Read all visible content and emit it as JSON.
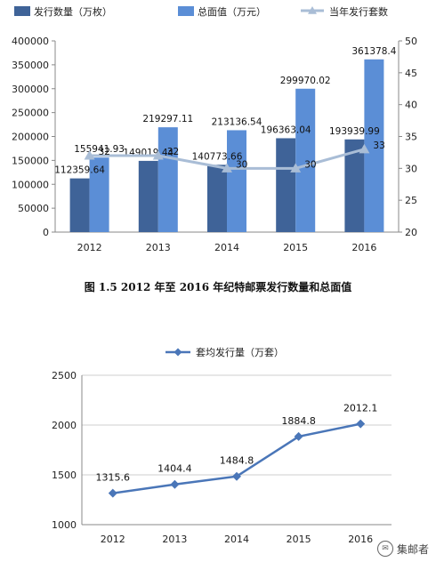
{
  "chart_data": [
    {
      "type": "bar",
      "categories": [
        "2012",
        "2013",
        "2014",
        "2015",
        "2016"
      ],
      "series": [
        {
          "name": "发行数量（万枚）",
          "kind": "bar",
          "axis": "left",
          "color": "#3f6398",
          "values": [
            112359.64,
            149019.44,
            140773.66,
            196363.04,
            193939.99
          ],
          "labels": [
            "112359.64",
            "149019.44",
            "140773.66",
            "196363.04",
            "193939.99"
          ]
        },
        {
          "name": "总面值（万元）",
          "kind": "bar",
          "axis": "left",
          "color": "#5b8ed6",
          "values": [
            155941.93,
            219297.11,
            213136.54,
            299970.02,
            361378.4
          ],
          "labels": [
            "155941.93",
            "219297.11",
            "213136.54",
            "299970.02",
            "361378.4"
          ]
        },
        {
          "name": "当年发行套数",
          "kind": "line",
          "axis": "right",
          "color": "#a9bdd6",
          "values": [
            32,
            32,
            30,
            30,
            33
          ],
          "labels": [
            "32",
            "32",
            "30",
            "30",
            "33"
          ]
        }
      ],
      "y_left": {
        "ylim": [
          0,
          400000
        ],
        "ticks": [
          "0",
          "50000",
          "100000",
          "150000",
          "200000",
          "250000",
          "300000",
          "350000",
          "400000"
        ]
      },
      "y_right": {
        "ylim": [
          20,
          50
        ],
        "ticks": [
          "20",
          "25",
          "30",
          "35",
          "40",
          "45",
          "50"
        ]
      },
      "legend_position": "top",
      "grid": false
    },
    {
      "type": "line",
      "categories": [
        "2012",
        "2013",
        "2014",
        "2015",
        "2016"
      ],
      "series": [
        {
          "name": "套均发行量（万套）",
          "color": "#4a76b8",
          "values": [
            1315.6,
            1404.4,
            1484.8,
            1884.8,
            2012.1
          ],
          "labels": [
            "1315.6",
            "1404.4",
            "1484.8",
            "1884.8",
            "2012.1"
          ]
        }
      ],
      "ylim": [
        1000,
        2500
      ],
      "yticks": [
        "1000",
        "1500",
        "2000",
        "2500"
      ],
      "legend_position": "top",
      "grid": true
    }
  ],
  "caption": "图 1.5   2012 年至 2016 年纪特邮票发行数量和总面值",
  "watermark": "集邮者"
}
